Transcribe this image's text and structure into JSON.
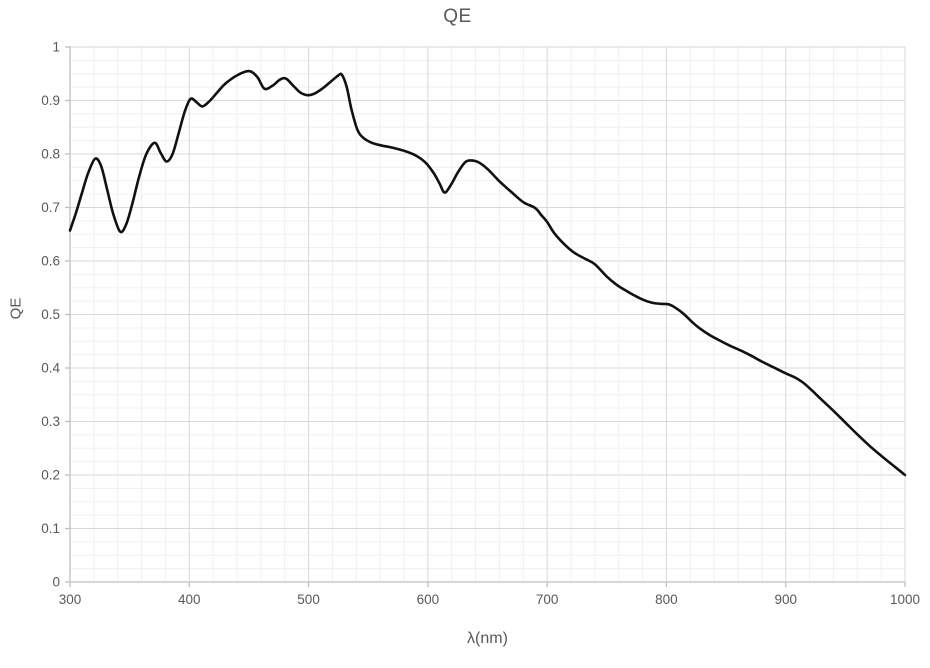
{
  "chart_data": {
    "type": "line",
    "title": "QE",
    "xlabel": "λ(nm)",
    "ylabel": "QE",
    "xlim": [
      300,
      1000
    ],
    "ylim": [
      0,
      1
    ],
    "x_major_unit": 100,
    "x_minor_unit": 20,
    "y_major_unit": 0.1,
    "y_minor_unit": 0.025,
    "x_tick_labels": [
      "300",
      "400",
      "500",
      "600",
      "700",
      "800",
      "900",
      "1000"
    ],
    "y_tick_labels": [
      "0",
      "0.1",
      "0.2",
      "0.3",
      "0.4",
      "0.5",
      "0.6",
      "0.7",
      "0.8",
      "0.9",
      "1"
    ],
    "grid": "major+minor",
    "legend_position": "none",
    "colors": {
      "series": "#111111",
      "grid_major": "#d9d9d9",
      "grid_minor": "#f0f0f0",
      "axis_line": "#bfbfbf",
      "text": "#595959"
    },
    "series": [
      {
        "name": "QE",
        "smoothed": true,
        "points": [
          [
            300,
            0.657
          ],
          [
            305,
            0.69
          ],
          [
            310,
            0.727
          ],
          [
            315,
            0.763
          ],
          [
            321,
            0.791
          ],
          [
            326,
            0.778
          ],
          [
            331,
            0.735
          ],
          [
            336,
            0.69
          ],
          [
            342,
            0.655
          ],
          [
            347,
            0.668
          ],
          [
            352,
            0.705
          ],
          [
            358,
            0.758
          ],
          [
            364,
            0.8
          ],
          [
            371,
            0.821
          ],
          [
            376,
            0.802
          ],
          [
            381,
            0.786
          ],
          [
            386,
            0.8
          ],
          [
            391,
            0.838
          ],
          [
            396,
            0.878
          ],
          [
            401,
            0.903
          ],
          [
            406,
            0.897
          ],
          [
            411,
            0.889
          ],
          [
            417,
            0.899
          ],
          [
            423,
            0.914
          ],
          [
            430,
            0.931
          ],
          [
            440,
            0.947
          ],
          [
            450,
            0.955
          ],
          [
            457,
            0.944
          ],
          [
            463,
            0.922
          ],
          [
            470,
            0.928
          ],
          [
            476,
            0.939
          ],
          [
            481,
            0.941
          ],
          [
            487,
            0.928
          ],
          [
            493,
            0.915
          ],
          [
            499,
            0.91
          ],
          [
            505,
            0.913
          ],
          [
            512,
            0.923
          ],
          [
            519,
            0.936
          ],
          [
            525,
            0.947
          ],
          [
            528,
            0.948
          ],
          [
            532,
            0.925
          ],
          [
            536,
            0.883
          ],
          [
            541,
            0.845
          ],
          [
            546,
            0.83
          ],
          [
            553,
            0.821
          ],
          [
            561,
            0.816
          ],
          [
            570,
            0.812
          ],
          [
            580,
            0.806
          ],
          [
            590,
            0.797
          ],
          [
            598,
            0.784
          ],
          [
            605,
            0.764
          ],
          [
            610,
            0.744
          ],
          [
            614,
            0.728
          ],
          [
            619,
            0.741
          ],
          [
            625,
            0.765
          ],
          [
            631,
            0.784
          ],
          [
            636,
            0.788
          ],
          [
            642,
            0.785
          ],
          [
            650,
            0.772
          ],
          [
            660,
            0.749
          ],
          [
            670,
            0.729
          ],
          [
            680,
            0.71
          ],
          [
            690,
            0.699
          ],
          [
            695,
            0.686
          ],
          [
            700,
            0.673
          ],
          [
            706,
            0.652
          ],
          [
            715,
            0.63
          ],
          [
            723,
            0.615
          ],
          [
            732,
            0.604
          ],
          [
            740,
            0.594
          ],
          [
            750,
            0.571
          ],
          [
            758,
            0.556
          ],
          [
            765,
            0.546
          ],
          [
            772,
            0.537
          ],
          [
            780,
            0.528
          ],
          [
            788,
            0.522
          ],
          [
            795,
            0.52
          ],
          [
            802,
            0.519
          ],
          [
            808,
            0.512
          ],
          [
            815,
            0.5
          ],
          [
            822,
            0.485
          ],
          [
            828,
            0.474
          ],
          [
            836,
            0.462
          ],
          [
            845,
            0.451
          ],
          [
            853,
            0.442
          ],
          [
            862,
            0.433
          ],
          [
            871,
            0.423
          ],
          [
            880,
            0.412
          ],
          [
            890,
            0.401
          ],
          [
            900,
            0.39
          ],
          [
            908,
            0.382
          ],
          [
            915,
            0.372
          ],
          [
            922,
            0.358
          ],
          [
            930,
            0.341
          ],
          [
            940,
            0.32
          ],
          [
            950,
            0.298
          ],
          [
            960,
            0.276
          ],
          [
            970,
            0.255
          ],
          [
            980,
            0.236
          ],
          [
            990,
            0.218
          ],
          [
            1000,
            0.2
          ]
        ]
      }
    ]
  }
}
